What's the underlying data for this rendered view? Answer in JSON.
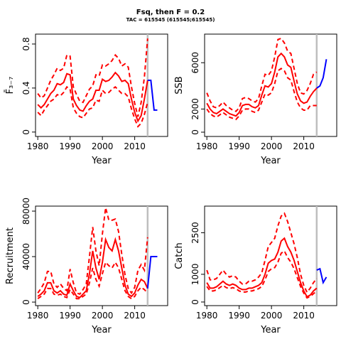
{
  "title": "Fsq, then F = 0.2",
  "subtitle": "TAC = 615545 (615545;615545)",
  "chart_data": [
    {
      "type": "line",
      "ylabel": "F̄₃₋₇",
      "xlabel": "Year",
      "x": [
        1980,
        1981,
        1982,
        1983,
        1984,
        1985,
        1986,
        1987,
        1988,
        1989,
        1990,
        1991,
        1992,
        1993,
        1994,
        1995,
        1996,
        1997,
        1998,
        1999,
        2000,
        2001,
        2002,
        2003,
        2004,
        2005,
        2006,
        2007,
        2008,
        2009,
        2010,
        2011,
        2012,
        2013,
        2014
      ],
      "xlim": [
        1979.3,
        2020.2
      ],
      "xticks": [
        1980,
        1990,
        2000,
        2010
      ],
      "ylim": [
        -0.04,
        0.89
      ],
      "yticks": [
        0.0,
        0.4,
        0.8
      ],
      "vline": 2014,
      "vline_color": "#bebebe",
      "series": [
        {
          "name": "estimate",
          "color": "#ff0000",
          "dash": false,
          "values": [
            0.25,
            0.22,
            0.25,
            0.3,
            0.35,
            0.38,
            0.44,
            0.43,
            0.45,
            0.53,
            0.52,
            0.3,
            0.24,
            0.2,
            0.19,
            0.24,
            0.28,
            0.3,
            0.38,
            0.38,
            0.48,
            0.46,
            0.47,
            0.5,
            0.54,
            0.51,
            0.46,
            0.47,
            0.44,
            0.3,
            0.18,
            0.1,
            0.15,
            0.3,
            0.47
          ]
        },
        {
          "name": "lower",
          "color": "#ff0000",
          "dash": true,
          "values": [
            0.18,
            0.15,
            0.2,
            0.24,
            0.28,
            0.3,
            0.34,
            0.33,
            0.36,
            0.41,
            0.39,
            0.22,
            0.17,
            0.14,
            0.13,
            0.17,
            0.21,
            0.22,
            0.29,
            0.28,
            0.38,
            0.35,
            0.36,
            0.39,
            0.41,
            0.38,
            0.35,
            0.35,
            0.32,
            0.21,
            0.12,
            0.05,
            0.08,
            0.16,
            0.27
          ]
        },
        {
          "name": "upper",
          "color": "#ff0000",
          "dash": true,
          "values": [
            0.35,
            0.31,
            0.33,
            0.4,
            0.47,
            0.52,
            0.58,
            0.56,
            0.58,
            0.7,
            0.69,
            0.41,
            0.34,
            0.28,
            0.27,
            0.33,
            0.39,
            0.42,
            0.52,
            0.51,
            0.61,
            0.6,
            0.62,
            0.65,
            0.7,
            0.67,
            0.6,
            0.62,
            0.59,
            0.41,
            0.26,
            0.14,
            0.27,
            0.5,
            0.85
          ]
        },
        {
          "name": "projection",
          "color": "#0000ff",
          "dash": false,
          "x": [
            2014,
            2015,
            2016,
            2017
          ],
          "values": [
            0.47,
            0.47,
            0.2,
            0.2
          ]
        }
      ]
    },
    {
      "type": "line",
      "ylabel": "SSB",
      "xlabel": "Year",
      "x": [
        1980,
        1981,
        1982,
        1983,
        1984,
        1985,
        1986,
        1987,
        1988,
        1989,
        1990,
        1991,
        1992,
        1993,
        1994,
        1995,
        1996,
        1997,
        1998,
        1999,
        2000,
        2001,
        2002,
        2003,
        2004,
        2005,
        2006,
        2007,
        2008,
        2009,
        2010,
        2011,
        2012,
        2013,
        2014
      ],
      "xlim": [
        1979.3,
        2020.2
      ],
      "xticks": [
        1980,
        1990,
        2000,
        2010
      ],
      "ylim": [
        -370,
        8470
      ],
      "yticks": [
        0,
        2000,
        6000
      ],
      "vline": 2014,
      "vline_color": "#bebebe",
      "series": [
        {
          "name": "estimate",
          "color": "#ff0000",
          "dash": false,
          "values": [
            2500,
            2000,
            1700,
            1600,
            1800,
            2000,
            1800,
            1600,
            1500,
            1400,
            1700,
            2300,
            2400,
            2400,
            2200,
            2100,
            2300,
            3200,
            4000,
            3900,
            4200,
            5200,
            6500,
            6800,
            6500,
            5800,
            5600,
            4400,
            3300,
            2700,
            2500,
            2600,
            3100,
            3500,
            3800
          ]
        },
        {
          "name": "lower",
          "color": "#ff0000",
          "dash": true,
          "values": [
            2000,
            1600,
            1400,
            1300,
            1500,
            1700,
            1500,
            1300,
            1200,
            1100,
            1400,
            1900,
            2000,
            2000,
            1800,
            1700,
            1900,
            2600,
            3300,
            3200,
            3400,
            4200,
            5300,
            5500,
            5300,
            4700,
            4500,
            3500,
            2600,
            2100,
            1900,
            1900,
            2300,
            2300,
            2300
          ]
        },
        {
          "name": "upper",
          "color": "#ff0000",
          "dash": true,
          "values": [
            3400,
            2700,
            2200,
            2100,
            2300,
            2600,
            2300,
            2100,
            1900,
            1800,
            2100,
            2900,
            3000,
            2900,
            2700,
            2600,
            2900,
            4000,
            5000,
            4900,
            5300,
            6500,
            8000,
            8100,
            7700,
            7000,
            6800,
            5500,
            4200,
            3400,
            3300,
            3600,
            4200,
            5000,
            5200
          ]
        },
        {
          "name": "projection",
          "color": "#0000ff",
          "dash": false,
          "x": [
            2014,
            2015,
            2016,
            2017
          ],
          "values": [
            3800,
            4000,
            4700,
            6300
          ]
        }
      ]
    },
    {
      "type": "line",
      "ylabel": "Recruitment",
      "xlabel": "Year",
      "x": [
        1980,
        1981,
        1982,
        1983,
        1984,
        1985,
        1986,
        1987,
        1988,
        1989,
        1990,
        1991,
        1992,
        1993,
        1994,
        1995,
        1996,
        1997,
        1998,
        1999,
        2000,
        2001,
        2002,
        2003,
        2004,
        2005,
        2006,
        2007,
        2008,
        2009,
        2010,
        2011,
        2012,
        2013,
        2014
      ],
      "xlim": [
        1979.3,
        2020.2
      ],
      "xticks": [
        1980,
        1990,
        2000,
        2010
      ],
      "ylim": [
        -3100,
        84400
      ],
      "yticks": [
        0,
        40000,
        80000
      ],
      "vline": 2014,
      "vline_color": "#bebebe",
      "series": [
        {
          "name": "estimate",
          "color": "#ff0000",
          "dash": false,
          "values": [
            5000,
            7000,
            10000,
            17000,
            17000,
            10000,
            8000,
            10000,
            7000,
            6000,
            16000,
            10000,
            5000,
            4000,
            7000,
            10000,
            25000,
            45000,
            30000,
            20000,
            35000,
            55000,
            48000,
            45000,
            55000,
            45000,
            30000,
            15000,
            7000,
            5000,
            8000,
            15000,
            20000,
            18000,
            12000
          ]
        },
        {
          "name": "lower",
          "color": "#ff0000",
          "dash": true,
          "values": [
            3000,
            5000,
            7000,
            12000,
            12000,
            7000,
            6000,
            7000,
            5000,
            4000,
            11000,
            7000,
            3000,
            3000,
            5000,
            7000,
            17000,
            30000,
            20000,
            14000,
            25000,
            35000,
            32000,
            30000,
            35000,
            30000,
            20000,
            10000,
            5000,
            3000,
            5000,
            10000,
            13000,
            11000,
            8000
          ]
        },
        {
          "name": "upper",
          "color": "#ff0000",
          "dash": true,
          "values": [
            8000,
            12000,
            17000,
            27000,
            27000,
            16000,
            13000,
            16000,
            12000,
            10000,
            29000,
            17000,
            8000,
            7000,
            11000,
            16000,
            40000,
            66000,
            45000,
            32000,
            60000,
            83000,
            72000,
            72000,
            73000,
            62000,
            42000,
            24000,
            12000,
            8000,
            13000,
            28000,
            33000,
            28000,
            57000
          ]
        },
        {
          "name": "projection",
          "color": "#0000ff",
          "dash": false,
          "x": [
            2014,
            2015,
            2016,
            2017
          ],
          "values": [
            12000,
            40000,
            40000,
            40000
          ]
        }
      ]
    },
    {
      "type": "line",
      "ylabel": "Catch",
      "xlabel": "Year",
      "x": [
        1980,
        1981,
        1982,
        1983,
        1984,
        1985,
        1986,
        1987,
        1988,
        1989,
        1990,
        1991,
        1992,
        1993,
        1994,
        1995,
        1996,
        1997,
        1998,
        1999,
        2000,
        2001,
        2002,
        2003,
        2004,
        2005,
        2006,
        2007,
        2008,
        2009,
        2010,
        2011,
        2012,
        2013,
        2014
      ],
      "xlim": [
        1979.3,
        2020.2
      ],
      "xticks": [
        1980,
        1990,
        2000,
        2010
      ],
      "ylim": [
        -130,
        3460
      ],
      "yticks": [
        0,
        1000,
        2500
      ],
      "vline": 2014,
      "vline_color": "#bebebe",
      "series": [
        {
          "name": "estimate",
          "color": "#ff0000",
          "dash": false,
          "values": [
            700,
            500,
            500,
            550,
            650,
            750,
            650,
            600,
            650,
            600,
            500,
            450,
            450,
            500,
            500,
            550,
            600,
            700,
            1000,
            1400,
            1500,
            1550,
            1800,
            2200,
            2300,
            2000,
            1800,
            1500,
            1100,
            700,
            400,
            190,
            250,
            400,
            500
          ]
        },
        {
          "name": "lower",
          "color": "#ff0000",
          "dash": true,
          "values": [
            560,
            400,
            400,
            440,
            520,
            600,
            520,
            480,
            520,
            480,
            400,
            360,
            360,
            400,
            400,
            440,
            480,
            560,
            800,
            1100,
            1200,
            1240,
            1440,
            1760,
            1840,
            1600,
            1440,
            1200,
            880,
            560,
            320,
            150,
            200,
            300,
            400
          ]
        },
        {
          "name": "upper",
          "color": "#ff0000",
          "dash": true,
          "values": [
            1150,
            800,
            800,
            850,
            1000,
            1150,
            1000,
            900,
            950,
            900,
            750,
            650,
            650,
            750,
            750,
            800,
            900,
            1050,
            1500,
            2000,
            2150,
            2300,
            2750,
            3100,
            3200,
            2900,
            2500,
            2100,
            1600,
            1000,
            600,
            350,
            500,
            700,
            850
          ]
        },
        {
          "name": "projection",
          "color": "#0000ff",
          "dash": false,
          "x": [
            2014,
            2015,
            2016,
            2017
          ],
          "values": [
            1150,
            1200,
            700,
            900
          ]
        }
      ]
    }
  ]
}
